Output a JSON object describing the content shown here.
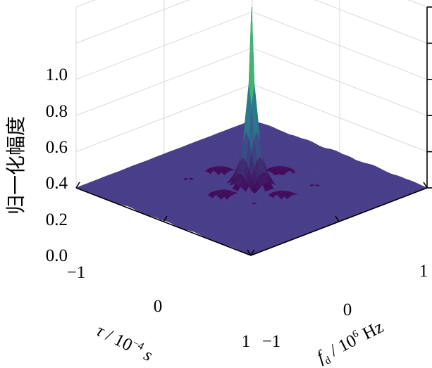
{
  "chart_data": {
    "type": "surface",
    "zlabel": "归一化幅度",
    "x_axis": {
      "label_main": "τ",
      "label_unit": " / 10",
      "label_exp": "−4",
      "label_tail": " s",
      "ticks": [
        "−1",
        "0",
        "1"
      ]
    },
    "y_axis": {
      "label_main": "f",
      "label_sub": "d",
      "label_unit": " / 10",
      "label_exp": "6",
      "label_tail": " Hz",
      "ticks": [
        "−1",
        "0",
        "1"
      ]
    },
    "z_axis": {
      "ticks": [
        "0.0",
        "0.2",
        "0.4",
        "0.6",
        "0.8",
        "1.0"
      ],
      "range": [
        0,
        1
      ]
    },
    "x_range": [
      -1,
      1
    ],
    "y_range": [
      -1,
      1
    ],
    "peak": {
      "x": 0,
      "y": 0,
      "z": 1.0
    },
    "sidelobe_level": 0.2,
    "colormap": [
      "#440154",
      "#3b528b",
      "#21918c",
      "#5ec962",
      "#fde725"
    ],
    "floor_color": "#4a3f8a",
    "grid": true
  }
}
